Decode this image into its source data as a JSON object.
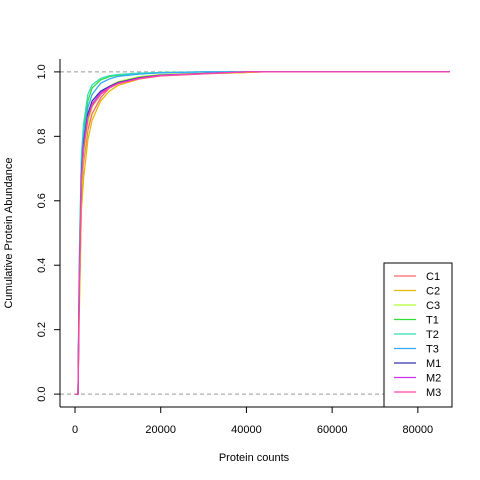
{
  "chart_data": {
    "type": "line",
    "title": "",
    "xlabel": "Protein counts",
    "ylabel": "Cumulative Protein Abundance",
    "xlim": [
      -3500,
      87500
    ],
    "ylim": [
      -0.04,
      1.04
    ],
    "x_ticks": [
      0,
      20000,
      40000,
      60000,
      80000
    ],
    "x_tick_labels": [
      "0",
      "20000",
      "40000",
      "60000",
      "80000"
    ],
    "y_ticks": [
      0.0,
      0.2,
      0.4,
      0.6,
      0.8,
      1.0
    ],
    "y_tick_labels": [
      "0.0",
      "0.2",
      "0.4",
      "0.6",
      "0.8",
      "1.0"
    ],
    "reference_lines": [
      0,
      1
    ],
    "reference_line_color": "#999999",
    "grid": false,
    "legend_position": "bottom-right",
    "series": [
      {
        "name": "C1",
        "color": "#FF6666",
        "x": [
          0,
          700,
          1000,
          1500,
          2000,
          3000,
          4000,
          6000,
          8000,
          10000,
          15000,
          20000,
          30000,
          40000,
          44000,
          87500
        ],
        "y": [
          0,
          0,
          0.3,
          0.62,
          0.72,
          0.82,
          0.87,
          0.92,
          0.95,
          0.965,
          0.982,
          0.99,
          0.995,
          0.998,
          1.0,
          1.0
        ]
      },
      {
        "name": "C2",
        "color": "#E6B800",
        "x": [
          0,
          700,
          1000,
          1500,
          2000,
          3000,
          4000,
          6000,
          8000,
          10000,
          15000,
          20000,
          30000,
          40000,
          44000,
          87500
        ],
        "y": [
          0,
          0,
          0.25,
          0.57,
          0.67,
          0.79,
          0.85,
          0.91,
          0.94,
          0.958,
          0.978,
          0.988,
          0.994,
          0.998,
          1.0,
          1.0
        ]
      },
      {
        "name": "C3",
        "color": "#B3FF33",
        "x": [
          0,
          700,
          1000,
          1500,
          2000,
          3000,
          4000,
          6000,
          8000,
          10000,
          15000,
          20000,
          30000,
          40000,
          87500
        ],
        "y": [
          0,
          0,
          0.32,
          0.64,
          0.74,
          0.84,
          0.89,
          0.93,
          0.955,
          0.97,
          0.985,
          0.992,
          0.996,
          1.0,
          1.0
        ]
      },
      {
        "name": "T1",
        "color": "#33DD33",
        "x": [
          0,
          700,
          1000,
          1500,
          2000,
          3000,
          4000,
          6000,
          8000,
          10000,
          15000,
          20000,
          30000,
          87500
        ],
        "y": [
          0,
          0,
          0.4,
          0.72,
          0.82,
          0.91,
          0.95,
          0.975,
          0.985,
          0.99,
          0.995,
          0.998,
          1.0,
          1.0
        ]
      },
      {
        "name": "T2",
        "color": "#33DDBB",
        "x": [
          0,
          700,
          1000,
          1500,
          2000,
          3000,
          4000,
          6000,
          8000,
          10000,
          15000,
          20000,
          30000,
          87500
        ],
        "y": [
          0,
          0,
          0.42,
          0.74,
          0.84,
          0.93,
          0.96,
          0.98,
          0.988,
          0.992,
          0.996,
          0.998,
          1.0,
          1.0
        ]
      },
      {
        "name": "T3",
        "color": "#33AAFF",
        "x": [
          0,
          700,
          1000,
          1500,
          2000,
          3000,
          4000,
          6000,
          8000,
          10000,
          15000,
          20000,
          30000,
          87500
        ],
        "y": [
          0,
          0,
          0.38,
          0.7,
          0.8,
          0.89,
          0.93,
          0.965,
          0.978,
          0.986,
          0.993,
          0.997,
          1.0,
          1.0
        ]
      },
      {
        "name": "M1",
        "color": "#3333AA",
        "x": [
          0,
          700,
          1000,
          1500,
          2000,
          3000,
          4000,
          6000,
          8000,
          10000,
          15000,
          20000,
          30000,
          40000,
          87500
        ],
        "y": [
          0,
          0,
          0.35,
          0.68,
          0.78,
          0.87,
          0.91,
          0.94,
          0.955,
          0.967,
          0.982,
          0.99,
          0.995,
          1.0,
          1.0
        ]
      },
      {
        "name": "M2",
        "color": "#CC33EE",
        "x": [
          0,
          700,
          1000,
          1500,
          2000,
          3000,
          4000,
          6000,
          8000,
          10000,
          15000,
          20000,
          30000,
          40000,
          87500
        ],
        "y": [
          0,
          0,
          0.34,
          0.67,
          0.77,
          0.86,
          0.9,
          0.935,
          0.952,
          0.965,
          0.98,
          0.989,
          0.995,
          1.0,
          1.0
        ]
      },
      {
        "name": "M3",
        "color": "#FF44AA",
        "x": [
          0,
          700,
          1000,
          1500,
          2000,
          3000,
          4000,
          6000,
          8000,
          10000,
          15000,
          20000,
          30000,
          40000,
          87500
        ],
        "y": [
          0,
          0,
          0.33,
          0.66,
          0.76,
          0.855,
          0.895,
          0.93,
          0.95,
          0.963,
          0.979,
          0.988,
          0.994,
          1.0,
          1.0
        ]
      }
    ]
  }
}
